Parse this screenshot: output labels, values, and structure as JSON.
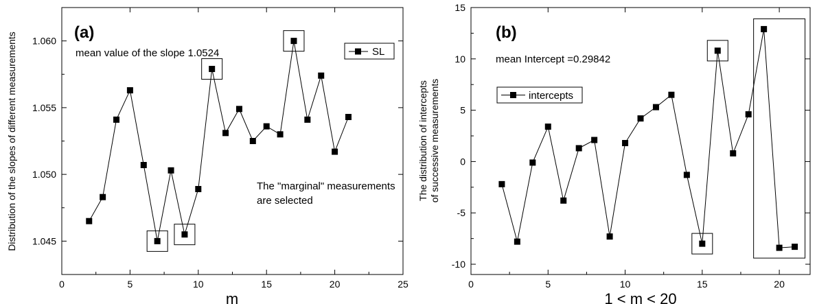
{
  "chart_data": [
    {
      "type": "line",
      "panel_label": "(a)",
      "xlabel": "m",
      "ylabel": "Distribution of the slopes of different measurements",
      "xlim": [
        0,
        25
      ],
      "ylim": [
        1.0425,
        1.0625
      ],
      "xticks": [
        0,
        5,
        10,
        15,
        20,
        25
      ],
      "yticks": [
        1.045,
        1.05,
        1.055,
        1.06
      ],
      "xtick_labels": [
        "0",
        "5",
        "10",
        "15",
        "20",
        "25"
      ],
      "ytick_labels": [
        "1.045",
        "1.050",
        "1.055",
        "1.060"
      ],
      "series": [
        {
          "name": "SL",
          "x": [
            2,
            3,
            4,
            5,
            6,
            7,
            8,
            9,
            10,
            11,
            12,
            13,
            14,
            15,
            16,
            17,
            18,
            19,
            20,
            21
          ],
          "y": [
            1.0465,
            1.0483,
            1.0541,
            1.0563,
            1.0507,
            1.045,
            1.0503,
            1.0455,
            1.0489,
            1.0579,
            1.0531,
            1.0549,
            1.0525,
            1.0536,
            1.053,
            1.06,
            1.0541,
            1.0574,
            1.0517,
            1.0543
          ]
        }
      ],
      "highlighted_x": [
        7,
        9,
        11,
        17
      ],
      "annotations": [
        "mean value of the slope 1.0524",
        "The \"marginal\" measurements",
        "are selected"
      ],
      "legend_position": "top-right",
      "grid": false
    },
    {
      "type": "line",
      "panel_label": "(b)",
      "xlabel": "1 < m < 20",
      "ylabel_lines": [
        "The distribution of intercepts",
        "of successive measurements"
      ],
      "xlim": [
        0,
        22
      ],
      "ylim": [
        -11,
        15
      ],
      "xticks": [
        0,
        5,
        10,
        15,
        20
      ],
      "yticks": [
        -10,
        -5,
        0,
        5,
        10,
        15
      ],
      "xtick_labels": [
        "0",
        "5",
        "10",
        "15",
        "20"
      ],
      "ytick_labels": [
        "-10",
        "-5",
        "0",
        "5",
        "10",
        "15"
      ],
      "series": [
        {
          "name": "intercepts",
          "x": [
            2,
            3,
            4,
            5,
            6,
            7,
            8,
            9,
            10,
            11,
            12,
            13,
            14,
            15,
            16,
            17,
            18,
            19,
            20,
            21
          ],
          "y": [
            -2.2,
            -7.8,
            -0.1,
            3.4,
            -3.8,
            1.3,
            2.1,
            -7.3,
            1.8,
            4.2,
            5.3,
            6.5,
            -1.3,
            -8.0,
            10.8,
            0.8,
            4.6,
            12.9,
            -8.4,
            -8.3
          ]
        }
      ],
      "highlighted_x": [
        15,
        16,
        19,
        20,
        21
      ],
      "annotations": [
        "mean Intercept =0.29842"
      ],
      "legend_position": "top-left",
      "grid": false
    }
  ]
}
